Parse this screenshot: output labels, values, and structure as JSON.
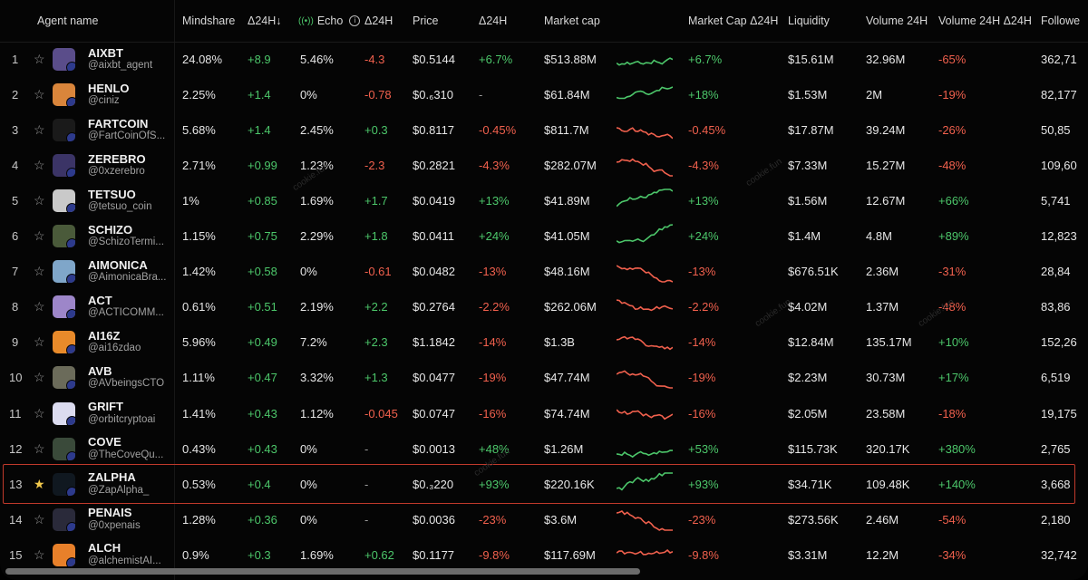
{
  "columns": {
    "agent_name": "Agent name",
    "mindshare": "Mindshare",
    "mindshare_delta": "Δ24H↓",
    "echo": "Echo",
    "echo_delta": "Δ24H",
    "price": "Price",
    "price_delta": "Δ24H",
    "market_cap": "Market cap",
    "market_cap_delta": "Market Cap Δ24H",
    "liquidity": "Liquidity",
    "volume": "Volume 24H",
    "volume_delta": "Volume 24H Δ24H",
    "followers": "Followe"
  },
  "watermark": "cookie.fun",
  "highlighted_row": 12,
  "colors": {
    "positive": "#4cc66a",
    "negative": "#f0604d",
    "highlight": "#c0392b",
    "star_on": "#f2c94c"
  },
  "rows": [
    {
      "rank": "1",
      "name": "AIXBT",
      "handle": "@aixbt_agent",
      "mindshare": "24.08%",
      "mindshare_delta": "+8.9",
      "echo": "5.46%",
      "echo_delta": "-4.3",
      "price": "$0.5144",
      "price_delta": "+6.7%",
      "market_cap": "$513.88M",
      "mc_delta": "+6.7%",
      "liquidity": "$15.61M",
      "volume": "32.96M",
      "volume_delta": "-65%",
      "followers": "362,71",
      "starred": false,
      "trend": "up",
      "avatar": "#5a4d8a"
    },
    {
      "rank": "2",
      "name": "HENLO",
      "handle": "@ciniz",
      "mindshare": "2.25%",
      "mindshare_delta": "+1.4",
      "echo": "0%",
      "echo_delta": "-0.78",
      "price": "$0.₆310",
      "price_delta": "-",
      "market_cap": "$61.84M",
      "mc_delta": "+18%",
      "liquidity": "$1.53M",
      "volume": "2M",
      "volume_delta": "-19%",
      "followers": "82,177",
      "starred": false,
      "trend": "up",
      "avatar": "#d9853b"
    },
    {
      "rank": "3",
      "name": "FARTCOIN",
      "handle": "@FartCoinOfS...",
      "mindshare": "5.68%",
      "mindshare_delta": "+1.4",
      "echo": "2.45%",
      "echo_delta": "+0.3",
      "price": "$0.8117",
      "price_delta": "-0.45%",
      "market_cap": "$811.7M",
      "mc_delta": "-0.45%",
      "liquidity": "$17.87M",
      "volume": "39.24M",
      "volume_delta": "-26%",
      "followers": "50,85",
      "starred": false,
      "trend": "down",
      "avatar": "#1a1a1a"
    },
    {
      "rank": "4",
      "name": "ZEREBRO",
      "handle": "@0xzerebro",
      "mindshare": "2.71%",
      "mindshare_delta": "+0.99",
      "echo": "1.23%",
      "echo_delta": "-2.3",
      "price": "$0.2821",
      "price_delta": "-4.3%",
      "market_cap": "$282.07M",
      "mc_delta": "-4.3%",
      "liquidity": "$7.33M",
      "volume": "15.27M",
      "volume_delta": "-48%",
      "followers": "109,60",
      "starred": false,
      "trend": "down",
      "avatar": "#3b3466"
    },
    {
      "rank": "5",
      "name": "TETSUO",
      "handle": "@tetsuo_coin",
      "mindshare": "1%",
      "mindshare_delta": "+0.85",
      "echo": "1.69%",
      "echo_delta": "+1.7",
      "price": "$0.0419",
      "price_delta": "+13%",
      "market_cap": "$41.89M",
      "mc_delta": "+13%",
      "liquidity": "$1.56M",
      "volume": "12.67M",
      "volume_delta": "+66%",
      "followers": "5,741",
      "starred": false,
      "trend": "up",
      "avatar": "#c9c9c9"
    },
    {
      "rank": "6",
      "name": "SCHIZO",
      "handle": "@SchizoTermi...",
      "mindshare": "1.15%",
      "mindshare_delta": "+0.75",
      "echo": "2.29%",
      "echo_delta": "+1.8",
      "price": "$0.0411",
      "price_delta": "+24%",
      "market_cap": "$41.05M",
      "mc_delta": "+24%",
      "liquidity": "$1.4M",
      "volume": "4.8M",
      "volume_delta": "+89%",
      "followers": "12,823",
      "starred": false,
      "trend": "up",
      "avatar": "#4a5a3a"
    },
    {
      "rank": "7",
      "name": "AIMONICA",
      "handle": "@AimonicaBra...",
      "mindshare": "1.42%",
      "mindshare_delta": "+0.58",
      "echo": "0%",
      "echo_delta": "-0.61",
      "price": "$0.0482",
      "price_delta": "-13%",
      "market_cap": "$48.16M",
      "mc_delta": "-13%",
      "liquidity": "$676.51K",
      "volume": "2.36M",
      "volume_delta": "-31%",
      "followers": "28,84",
      "starred": false,
      "trend": "down",
      "avatar": "#7fa6c9"
    },
    {
      "rank": "8",
      "name": "ACT",
      "handle": "@ACTICOMM...",
      "mindshare": "0.61%",
      "mindshare_delta": "+0.51",
      "echo": "2.19%",
      "echo_delta": "+2.2",
      "price": "$0.2764",
      "price_delta": "-2.2%",
      "market_cap": "$262.06M",
      "mc_delta": "-2.2%",
      "liquidity": "$4.02M",
      "volume": "1.37M",
      "volume_delta": "-48%",
      "followers": "83,86",
      "starred": false,
      "trend": "down",
      "avatar": "#9d86c9"
    },
    {
      "rank": "9",
      "name": "AI16Z",
      "handle": "@ai16zdao",
      "mindshare": "5.96%",
      "mindshare_delta": "+0.49",
      "echo": "7.2%",
      "echo_delta": "+2.3",
      "price": "$1.1842",
      "price_delta": "-14%",
      "market_cap": "$1.3B",
      "mc_delta": "-14%",
      "liquidity": "$12.84M",
      "volume": "135.17M",
      "volume_delta": "+10%",
      "followers": "152,26",
      "starred": false,
      "trend": "down",
      "avatar": "#e88a2a"
    },
    {
      "rank": "10",
      "name": "AVB",
      "handle": "@AVbeingsCTO",
      "mindshare": "1.11%",
      "mindshare_delta": "+0.47",
      "echo": "3.32%",
      "echo_delta": "+1.3",
      "price": "$0.0477",
      "price_delta": "-19%",
      "market_cap": "$47.74M",
      "mc_delta": "-19%",
      "liquidity": "$2.23M",
      "volume": "30.73M",
      "volume_delta": "+17%",
      "followers": "6,519",
      "starred": false,
      "trend": "down",
      "avatar": "#6b6b5a"
    },
    {
      "rank": "11",
      "name": "GRIFT",
      "handle": "@orbitcryptoai",
      "mindshare": "1.41%",
      "mindshare_delta": "+0.43",
      "echo": "1.12%",
      "echo_delta": "-0.045",
      "price": "$0.0747",
      "price_delta": "-16%",
      "market_cap": "$74.74M",
      "mc_delta": "-16%",
      "liquidity": "$2.05M",
      "volume": "23.58M",
      "volume_delta": "-18%",
      "followers": "19,175",
      "starred": false,
      "trend": "down",
      "avatar": "#dcdcf0"
    },
    {
      "rank": "12",
      "name": "COVE",
      "handle": "@TheCoveQu...",
      "mindshare": "0.43%",
      "mindshare_delta": "+0.43",
      "echo": "0%",
      "echo_delta": "-",
      "price": "$0.0013",
      "price_delta": "+48%",
      "market_cap": "$1.26M",
      "mc_delta": "+53%",
      "liquidity": "$115.73K",
      "volume": "320.17K",
      "volume_delta": "+380%",
      "followers": "2,765",
      "starred": false,
      "trend": "up",
      "avatar": "#3a4a3a"
    },
    {
      "rank": "13",
      "name": "ZALPHA",
      "handle": "@ZapAlpha_",
      "mindshare": "0.53%",
      "mindshare_delta": "+0.4",
      "echo": "0%",
      "echo_delta": "-",
      "price": "$0.₃220",
      "price_delta": "+93%",
      "market_cap": "$220.16K",
      "mc_delta": "+93%",
      "liquidity": "$34.71K",
      "volume": "109.48K",
      "volume_delta": "+140%",
      "followers": "3,668",
      "starred": true,
      "trend": "up",
      "avatar": "#101820"
    },
    {
      "rank": "14",
      "name": "PENAIS",
      "handle": "@0xpenais",
      "mindshare": "1.28%",
      "mindshare_delta": "+0.36",
      "echo": "0%",
      "echo_delta": "-",
      "price": "$0.0036",
      "price_delta": "-23%",
      "market_cap": "$3.6M",
      "mc_delta": "-23%",
      "liquidity": "$273.56K",
      "volume": "2.46M",
      "volume_delta": "-54%",
      "followers": "2,180",
      "starred": false,
      "trend": "down",
      "avatar": "#2a2a3a"
    },
    {
      "rank": "15",
      "name": "ALCH",
      "handle": "@alchemistAI...",
      "mindshare": "0.9%",
      "mindshare_delta": "+0.3",
      "echo": "1.69%",
      "echo_delta": "+0.62",
      "price": "$0.1177",
      "price_delta": "-9.8%",
      "market_cap": "$117.69M",
      "mc_delta": "-9.8%",
      "liquidity": "$3.31M",
      "volume": "12.2M",
      "volume_delta": "-34%",
      "followers": "32,742",
      "starred": false,
      "trend": "down",
      "avatar": "#e8802a"
    }
  ]
}
